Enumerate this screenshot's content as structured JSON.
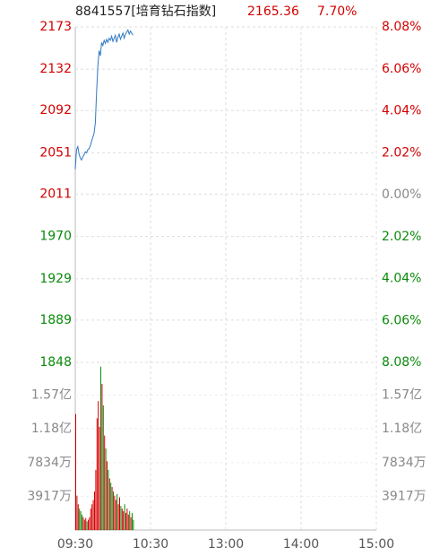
{
  "chart_data": [
    {
      "type": "line",
      "title": "8841557[培育钻石指数]",
      "last_price": 2165.36,
      "change": "7.70%",
      "x": [
        0,
        1,
        2,
        3,
        4,
        5,
        6,
        7,
        8,
        9,
        10,
        11,
        12,
        13,
        14,
        15,
        16,
        17,
        18,
        19,
        20,
        21,
        22,
        23,
        24,
        25,
        26,
        27,
        28,
        29,
        30,
        31,
        32,
        33,
        34,
        35,
        36,
        37,
        38,
        39,
        40,
        41,
        42,
        43,
        44,
        45,
        46
      ],
      "series": [
        {
          "color": "#2f78c4",
          "values": [
            2035,
            2054,
            2057,
            2050,
            2046,
            2044,
            2047,
            2049,
            2052,
            2051,
            2054,
            2055,
            2058,
            2062,
            2066,
            2070,
            2080,
            2110,
            2135,
            2150,
            2145,
            2158,
            2155,
            2160,
            2157,
            2161,
            2158,
            2162,
            2160,
            2164,
            2159,
            2162,
            2165,
            2158,
            2163,
            2166,
            2161,
            2164,
            2167,
            2162,
            2166,
            2168,
            2170,
            2166,
            2169,
            2167,
            2165
          ]
        }
      ],
      "xlim": [
        0,
        240
      ],
      "ylim": [
        1848,
        2173
      ],
      "yticks": [
        2173,
        2132,
        2092,
        2051,
        2011,
        1970,
        1929,
        1889,
        1848
      ],
      "y2lim": [
        -8.08,
        8.08
      ],
      "y2ticks": [
        {
          "value": 8.08,
          "label": "8.08%"
        },
        {
          "value": 6.06,
          "label": "6.06%"
        },
        {
          "value": 4.04,
          "label": "4.04%"
        },
        {
          "value": 2.02,
          "label": "2.02%"
        },
        {
          "value": 0,
          "label": "0.00%"
        },
        {
          "value": -2.02,
          "label": "2.02%"
        },
        {
          "value": -4.04,
          "label": "4.04%"
        },
        {
          "value": -6.06,
          "label": "6.06%"
        },
        {
          "value": -8.08,
          "label": "8.08%"
        }
      ],
      "up_color": "#d40000",
      "down_color": "#0a8a0a",
      "flat_color": "#888888",
      "grid": true
    },
    {
      "type": "bar",
      "x": [
        0,
        1,
        2,
        3,
        4,
        5,
        6,
        7,
        8,
        9,
        10,
        11,
        12,
        13,
        14,
        15,
        16,
        17,
        18,
        19,
        20,
        21,
        22,
        23,
        24,
        25,
        26,
        27,
        28,
        29,
        30,
        31,
        32,
        33,
        34,
        35,
        36,
        37,
        38,
        39,
        40,
        41,
        42,
        43,
        44,
        45,
        46
      ],
      "values": [
        135000000,
        40000000,
        30000000,
        25000000,
        22000000,
        18000000,
        15000000,
        12000000,
        14000000,
        10000000,
        12000000,
        15000000,
        25000000,
        30000000,
        35000000,
        45000000,
        70000000,
        130000000,
        150000000,
        120000000,
        190000000,
        170000000,
        145000000,
        110000000,
        95000000,
        80000000,
        70000000,
        60000000,
        55000000,
        50000000,
        45000000,
        40000000,
        35000000,
        42000000,
        30000000,
        38000000,
        28000000,
        25000000,
        22000000,
        30000000,
        20000000,
        25000000,
        18000000,
        22000000,
        15000000,
        20000000,
        12000000
      ],
      "xlim": [
        0,
        240
      ],
      "xticks": [
        {
          "value": 0,
          "label": "09:30"
        },
        {
          "value": 60,
          "label": "10:30"
        },
        {
          "value": 120,
          "label": "13:00"
        },
        {
          "value": 180,
          "label": "14:00"
        },
        {
          "value": 240,
          "label": "15:00"
        }
      ],
      "ylim": [
        0,
        195000000
      ],
      "yticks": [
        {
          "value": 157000000,
          "label": "1.57亿"
        },
        {
          "value": 118000000,
          "label": "1.18亿"
        },
        {
          "value": 78340000,
          "label": "7834万"
        },
        {
          "value": 39170000,
          "label": "3917万"
        }
      ]
    }
  ]
}
